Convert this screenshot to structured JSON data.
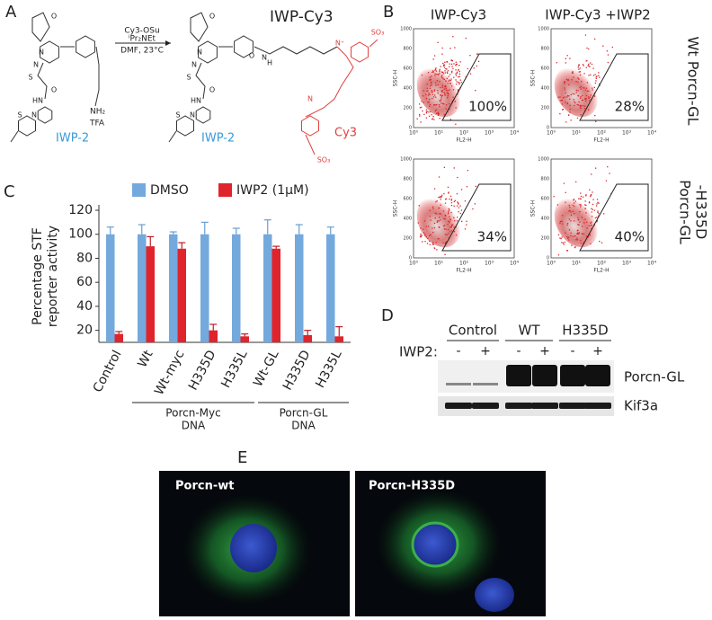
{
  "panel_a": {
    "label": "A",
    "title": "IWP-Cy3",
    "reagents": [
      "Cy3-OSu",
      "ⁱPr₂NEt",
      "DMF, 23°C"
    ],
    "compound_labels": [
      "IWP-2",
      "IWP-2",
      "Cy3"
    ],
    "amine": [
      "NH₂",
      "TFA"
    ],
    "atoms": [
      "O",
      "N",
      "N",
      "S",
      "O",
      "HN",
      "N",
      "S",
      "O",
      "N",
      "N",
      "S",
      "O",
      "HN",
      "N",
      "S",
      "H",
      "N",
      "O",
      "N⁺",
      "SO₃",
      "N",
      "SO₃"
    ]
  },
  "panel_b": {
    "label": "B",
    "column_titles": [
      "IWP-Cy3",
      "IWP-Cy3 +IWP2"
    ],
    "row_titles": [
      [
        "Wt Porcn-GL"
      ],
      [
        "Porcn-GL",
        "-H335D"
      ]
    ],
    "plots": [
      "100%",
      "28%",
      "34%",
      "40%"
    ],
    "y_axis_label": "SSC-H",
    "x_axis_label": "FL2-H",
    "yticks": [
      "0",
      "200",
      "400",
      "600",
      "800",
      "1000"
    ],
    "xticks": [
      "10⁰",
      "10¹",
      "10²",
      "10³",
      "10⁴"
    ]
  },
  "chart_data": {
    "type": "bar",
    "label": "C",
    "ylabel": [
      "Percentage STF",
      "reporter activity"
    ],
    "categories": [
      "Control",
      "Wt",
      "Wt-myc",
      "H335D",
      "H335L",
      "Wt-GL",
      "H335D",
      "H335L"
    ],
    "series": [
      {
        "name": "DMSO",
        "color": "#74a9dd",
        "values": [
          100,
          100,
          100,
          100,
          100,
          100,
          100,
          100
        ],
        "errors": [
          6,
          8,
          2,
          10,
          5,
          12,
          8,
          6
        ]
      },
      {
        "name": "IWP2 (1μM)",
        "color": "#e0242c",
        "values": [
          17,
          90,
          88,
          20,
          15,
          88,
          16,
          15
        ],
        "errors": [
          2,
          8,
          5,
          5,
          2,
          2,
          4,
          8
        ]
      }
    ],
    "groups": [
      {
        "label": [
          "Porcn-Myc",
          "DNA"
        ],
        "from": 1,
        "to": 4
      },
      {
        "label": [
          "Porcn-GL",
          "DNA"
        ],
        "from": 5,
        "to": 7
      }
    ],
    "ylim": [
      10,
      120
    ],
    "yticks": [
      20,
      40,
      60,
      80,
      100,
      120
    ]
  },
  "panel_d": {
    "label": "D",
    "groups": [
      "Control",
      "WT",
      "H335D"
    ],
    "treatment_label": "IWP2:",
    "treatment": [
      "-",
      "+",
      "-",
      "+",
      "-",
      "+"
    ],
    "blots": [
      "Porcn-GL",
      "Kif3a"
    ]
  },
  "panel_e": {
    "label": "E",
    "images": [
      "Porcn-wt",
      "Porcn-H335D"
    ]
  }
}
